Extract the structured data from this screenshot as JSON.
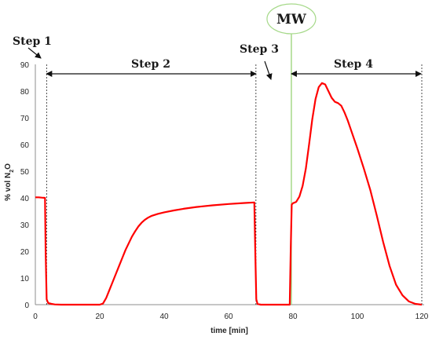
{
  "chart_data": {
    "type": "line",
    "xlabel": "time [min]",
    "ylabel_html": "% vol N",
    "ylabel_sub": "2",
    "ylabel_tail": "O",
    "xlim": [
      0,
      120
    ],
    "ylim": [
      0,
      90
    ],
    "xticks": [
      0,
      20,
      40,
      60,
      80,
      100,
      120
    ],
    "yticks": [
      0,
      10,
      20,
      30,
      40,
      50,
      60,
      70,
      80,
      90
    ],
    "grid": false,
    "series": [
      {
        "color": "#ff0000",
        "segments": [
          [
            [
              0,
              40.2
            ],
            [
              1,
              40.2
            ],
            [
              2,
              40.1
            ],
            [
              3,
              40.0
            ],
            [
              3.2,
              20.0
            ],
            [
              3.5,
              2.0
            ],
            [
              4,
              0.6
            ],
            [
              5,
              0.3
            ],
            [
              6,
              0.1
            ],
            [
              8,
              0.0
            ],
            [
              15,
              0.0
            ],
            [
              20,
              0.0
            ],
            [
              21,
              0.4
            ],
            [
              22,
              2.5
            ],
            [
              23,
              5.5
            ],
            [
              24,
              8.5
            ],
            [
              25,
              11.5
            ],
            [
              26,
              14.5
            ],
            [
              27,
              17.5
            ],
            [
              28,
              20.5
            ],
            [
              29,
              23.0
            ],
            [
              30,
              25.5
            ],
            [
              31,
              27.5
            ],
            [
              32,
              29.3
            ],
            [
              33,
              30.7
            ],
            [
              34,
              31.8
            ],
            [
              35,
              32.6
            ],
            [
              36,
              33.2
            ],
            [
              38,
              34.0
            ],
            [
              40,
              34.6
            ],
            [
              43,
              35.3
            ],
            [
              46,
              35.9
            ],
            [
              50,
              36.6
            ],
            [
              55,
              37.2
            ],
            [
              60,
              37.7
            ],
            [
              65,
              38.1
            ],
            [
              68,
              38.3
            ],
            [
              68.3,
              20.0
            ],
            [
              68.6,
              2.0
            ],
            [
              69,
              0.3
            ],
            [
              70,
              0.0
            ],
            [
              79,
              0.0
            ],
            [
              79.3,
              20.0
            ],
            [
              79.6,
              37.5
            ],
            [
              80,
              38.0
            ],
            [
              81,
              38.5
            ],
            [
              82,
              40.5
            ],
            [
              83,
              44.5
            ],
            [
              84,
              51.0
            ],
            [
              85,
              60.0
            ],
            [
              86,
              69.5
            ],
            [
              87,
              77.0
            ],
            [
              88,
              81.5
            ],
            [
              89,
              83.0
            ],
            [
              90,
              82.5
            ],
            [
              91,
              80.0
            ],
            [
              92,
              77.5
            ],
            [
              93,
              76.0
            ],
            [
              94,
              75.5
            ],
            [
              95,
              74.5
            ],
            [
              96,
              72.0
            ],
            [
              97,
              69.0
            ],
            [
              98,
              65.5
            ],
            [
              100,
              58.5
            ],
            [
              102,
              51.0
            ],
            [
              104,
              43.0
            ],
            [
              106,
              33.5
            ],
            [
              108,
              23.5
            ],
            [
              110,
              14.5
            ],
            [
              112,
              7.5
            ],
            [
              114,
              3.5
            ],
            [
              116,
              1.2
            ],
            [
              118,
              0.3
            ],
            [
              120,
              0.0
            ]
          ]
        ]
      }
    ],
    "steps": [
      {
        "label": "Step 1"
      },
      {
        "label": "Step 2"
      },
      {
        "label": "Step 3"
      },
      {
        "label": "Step 4"
      }
    ],
    "boundaries_x": [
      3.5,
      68.5,
      79.5,
      120
    ],
    "mw_label": "MW"
  }
}
